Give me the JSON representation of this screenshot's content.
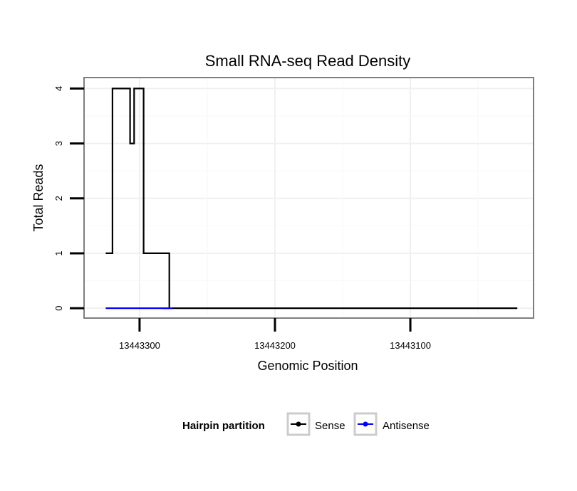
{
  "chart_data": {
    "type": "line",
    "title": "Small RNA-seq Read Density",
    "xlabel": "Genomic Position",
    "ylabel": "Total Reads",
    "x_reversed": true,
    "xlim": [
      13443341,
      13443009
    ],
    "ylim": [
      -0.18,
      4.2
    ],
    "x_ticks": [
      13443300,
      13443200,
      13443100
    ],
    "x_tick_labels": [
      "13443300",
      "13443200",
      "13443100"
    ],
    "y_ticks": [
      0,
      1,
      2,
      3,
      4
    ],
    "y_tick_labels": [
      "0",
      "1",
      "2",
      "3",
      "4"
    ],
    "grid": true,
    "legend": {
      "title": "Hairpin partition",
      "position": "bottom"
    },
    "series": [
      {
        "name": "Sense",
        "color": "#000000",
        "x": [
          13443325,
          13443320,
          13443320,
          13443315,
          13443315,
          13443307,
          13443307,
          13443304,
          13443304,
          13443300,
          13443300,
          13443297,
          13443297,
          13443278,
          13443278,
          13443265,
          13443265,
          13443283,
          13443283,
          13443130,
          13443130,
          13443046,
          13443046,
          13443021
        ],
        "values": [
          1,
          1,
          4,
          4,
          4,
          4,
          3,
          3,
          4,
          4,
          4,
          4,
          1,
          1,
          0,
          0,
          0,
          0,
          0,
          0,
          0,
          0,
          0,
          0
        ]
      },
      {
        "name": "Antisense",
        "color": "#0000ff",
        "x": [
          13443325,
          13443276
        ],
        "values": [
          0,
          0
        ]
      }
    ]
  }
}
